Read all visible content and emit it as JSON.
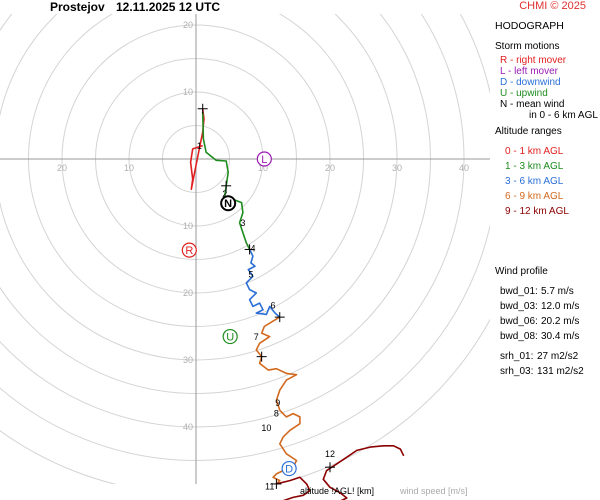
{
  "header": {
    "station": "Prostejov",
    "datetime": "12.11.2025 12 UTC",
    "credit": "CHMI © 2025"
  },
  "panel": {
    "title": "HODOGRAPH",
    "storm_motions_title": "Storm motions",
    "storm_motions": [
      {
        "code": "R",
        "text": "R - right mover",
        "color": "#e02020"
      },
      {
        "code": "L",
        "text": "L - left mover",
        "color": "#9b19b5"
      },
      {
        "code": "D",
        "text": "D - downwind",
        "color": "#2a6fd8"
      },
      {
        "code": "U",
        "text": "U - upwind",
        "color": "#1e8c1e"
      },
      {
        "code": "N",
        "text": "N - mean wind",
        "color": "#000000"
      }
    ],
    "mean_wind_note": "in 0 - 6 km AGL",
    "altitude_title": "Altitude ranges",
    "altitude_ranges": [
      {
        "text": "0 - 1 km AGL",
        "color": "#e02020"
      },
      {
        "text": "1 - 3 km AGL",
        "color": "#1e8c1e"
      },
      {
        "text": "3 - 6 km AGL",
        "color": "#2a6fd8"
      },
      {
        "text": "6 - 9 km AGL",
        "color": "#d2691e"
      },
      {
        "text": "9 - 12 km AGL",
        "color": "#8b0000"
      }
    ],
    "wind_profile_title": "Wind profile",
    "wind_profile": [
      {
        "label": "bwd_01:",
        "value": "5.7 m/s"
      },
      {
        "label": "bwd_03:",
        "value": "12.0 m/s"
      },
      {
        "label": "bwd_06:",
        "value": "20.2 m/s"
      },
      {
        "label": "bwd_08:",
        "value": "30.4 m/s"
      },
      {
        "label": "srh_01:",
        "value": "27 m2/s2"
      },
      {
        "label": "srh_03:",
        "value": "131 m2/s2"
      }
    ]
  },
  "footer": {
    "altitude_label": "altitude !AGL! [km]",
    "speed_label": "wind speed [m/s]"
  },
  "chart_data": {
    "type": "hodograph",
    "title": "HODOGRAPH",
    "units": "m/s",
    "rings": [
      5,
      10,
      15,
      20,
      25,
      30,
      35,
      40,
      45,
      50
    ],
    "tick_labels": {
      "up": [
        20,
        10
      ],
      "down": [
        10,
        20,
        30,
        40
      ],
      "left": [
        20,
        10
      ],
      "right": [
        10,
        20,
        30,
        40
      ]
    },
    "colors": {
      "0-1": "#e02020",
      "1-3": "#1e8c1e",
      "3-6": "#2a6fd8",
      "6-9": "#d2691e",
      "9-12": "#8b0000"
    },
    "segments": [
      {
        "range": "0-1",
        "points": [
          [
            1,
            2
          ],
          [
            -0.5,
            1.5
          ],
          [
            -0.8,
            -0.5
          ],
          [
            -0.5,
            -3
          ],
          [
            -0.7,
            -4.5
          ],
          [
            0.5,
            1.5
          ],
          [
            1.0,
            4.0
          ],
          [
            1.2,
            6.0
          ],
          [
            1.0,
            7.5
          ]
        ]
      },
      {
        "range": "1-3",
        "points": [
          [
            1.0,
            7.0
          ],
          [
            1.1,
            3.0
          ],
          [
            1.5,
            1.0
          ],
          [
            3.0,
            -0.2
          ],
          [
            4.5,
            -0.3
          ],
          [
            4.8,
            -2.0
          ],
          [
            4.5,
            -4.0
          ],
          [
            4.3,
            -5.5
          ],
          [
            5.5,
            -6.0
          ],
          [
            6.8,
            -6.5
          ],
          [
            7.0,
            -8.0
          ],
          [
            6.5,
            -9.5
          ],
          [
            7.0,
            -11.0
          ],
          [
            7.5,
            -12.5
          ],
          [
            8.0,
            -13.5
          ]
        ]
      },
      {
        "range": "3-6",
        "points": [
          [
            8.0,
            -13.5
          ],
          [
            8.5,
            -14.5
          ],
          [
            8.2,
            -15.5
          ],
          [
            8.8,
            -16.0
          ],
          [
            7.8,
            -16.5
          ],
          [
            8.5,
            -17.5
          ],
          [
            7.5,
            -18.5
          ],
          [
            8.0,
            -19.5
          ],
          [
            9.0,
            -20.0
          ],
          [
            8.0,
            -21.0
          ],
          [
            8.5,
            -22.0
          ],
          [
            9.5,
            -21.5
          ],
          [
            10.0,
            -22.5
          ],
          [
            9.0,
            -23.0
          ],
          [
            10.5,
            -23.2
          ],
          [
            11.0,
            -22.0
          ],
          [
            11.8,
            -23.0
          ],
          [
            12.5,
            -23.6
          ]
        ]
      },
      {
        "range": "6-9",
        "points": [
          [
            12.5,
            -23.6
          ],
          [
            11.5,
            -24.2
          ],
          [
            10.2,
            -25.0
          ],
          [
            9.8,
            -26.0
          ],
          [
            11.0,
            -26.5
          ],
          [
            9.5,
            -27.5
          ],
          [
            9.0,
            -28.5
          ],
          [
            9.8,
            -29.5
          ],
          [
            9.5,
            -30.5
          ],
          [
            10.8,
            -31.5
          ],
          [
            12.0,
            -31.3
          ],
          [
            13.5,
            -32.0
          ],
          [
            15.0,
            -32.2
          ],
          [
            13.5,
            -33.0
          ],
          [
            12.5,
            -34.5
          ],
          [
            12.0,
            -36.0
          ],
          [
            12.5,
            -37.5
          ],
          [
            13.5,
            -38.5
          ],
          [
            14.5,
            -38.0
          ],
          [
            15.5,
            -38.5
          ],
          [
            15.5,
            -39.5
          ],
          [
            14.0,
            -40.5
          ],
          [
            13.0,
            -41.5
          ],
          [
            12.5,
            -42.5
          ],
          [
            13.5,
            -44.0
          ],
          [
            15.0,
            -45.0
          ],
          [
            14.5,
            -46.0
          ],
          [
            13.0,
            -46.5
          ],
          [
            12.0,
            -47.0
          ],
          [
            11.5,
            -47.5
          ],
          [
            12.5,
            -48.0
          ],
          [
            12.0,
            -48.5
          ]
        ]
      },
      {
        "range": "9-12",
        "points": [
          [
            12.0,
            -48.5
          ],
          [
            14.0,
            -48.0
          ],
          [
            15.5,
            -47.5
          ],
          [
            16.5,
            -48.5
          ],
          [
            17.0,
            -49.5
          ],
          [
            16.0,
            -50.2
          ],
          [
            14.5,
            -50.5
          ],
          [
            13.0,
            -51.0
          ],
          [
            12.0,
            -51.5
          ],
          [
            11.5,
            -52.5
          ],
          [
            13.0,
            -53.0
          ],
          [
            15.0,
            -53.0
          ],
          [
            17.0,
            -52.5
          ],
          [
            19.0,
            -51.8
          ],
          [
            21.0,
            -51.3
          ],
          [
            22.5,
            -50.6
          ],
          [
            21.5,
            -49.8
          ],
          [
            20.0,
            -49.0
          ],
          [
            19.0,
            -47.8
          ],
          [
            19.5,
            -46.5
          ],
          [
            21.0,
            -45.5
          ],
          [
            22.5,
            -44.5
          ],
          [
            24.0,
            -43.5
          ],
          [
            26.0,
            -43.0
          ],
          [
            28.0,
            -42.8
          ],
          [
            29.5,
            -42.8
          ],
          [
            30.5,
            -43.3
          ],
          [
            31.0,
            -44.3
          ]
        ]
      }
    ],
    "height_labels": [
      {
        "km": "1",
        "u": 0.5,
        "v": 1.5
      },
      {
        "km": "2",
        "u": 4.3,
        "v": -5.7
      },
      {
        "km": "3",
        "u": 7.0,
        "v": -10.0
      },
      {
        "km": "4",
        "u": 8.5,
        "v": -13.8
      },
      {
        "km": "5",
        "u": 8.2,
        "v": -17.7
      },
      {
        "km": "6",
        "u": 11.5,
        "v": -22.3
      },
      {
        "km": "7",
        "u": 9.0,
        "v": -27.0
      },
      {
        "km": "8",
        "u": 12.0,
        "v": -38.4
      },
      {
        "km": "9",
        "u": 12.2,
        "v": -36.9
      },
      {
        "km": "10",
        "u": 10.5,
        "v": -40.6
      },
      {
        "km": "11",
        "u": 11.0,
        "v": -49.3
      },
      {
        "km": "12",
        "u": 20.0,
        "v": -44.5
      }
    ],
    "plus_marks": [
      {
        "u": 1.0,
        "v": 7.5
      },
      {
        "u": 4.5,
        "v": -4.0
      },
      {
        "u": 8.0,
        "v": -13.5
      },
      {
        "u": 12.5,
        "v": -23.6
      },
      {
        "u": 9.8,
        "v": -29.5
      },
      {
        "u": 12.0,
        "v": -48.5
      },
      {
        "u": 20.0,
        "v": -46.0
      }
    ],
    "storm_markers": [
      {
        "label": "R",
        "u": -1.0,
        "v": -13.6,
        "color": "#e02020"
      },
      {
        "label": "L",
        "u": 10.2,
        "v": 0.0,
        "color": "#9b19b5"
      },
      {
        "label": "U",
        "u": 5.1,
        "v": -26.5,
        "color": "#1e8c1e"
      },
      {
        "label": "D",
        "u": 13.9,
        "v": -46.2,
        "color": "#2a6fd8"
      },
      {
        "label": "N",
        "u": 4.8,
        "v": -6.6,
        "color": "#000000"
      }
    ]
  }
}
